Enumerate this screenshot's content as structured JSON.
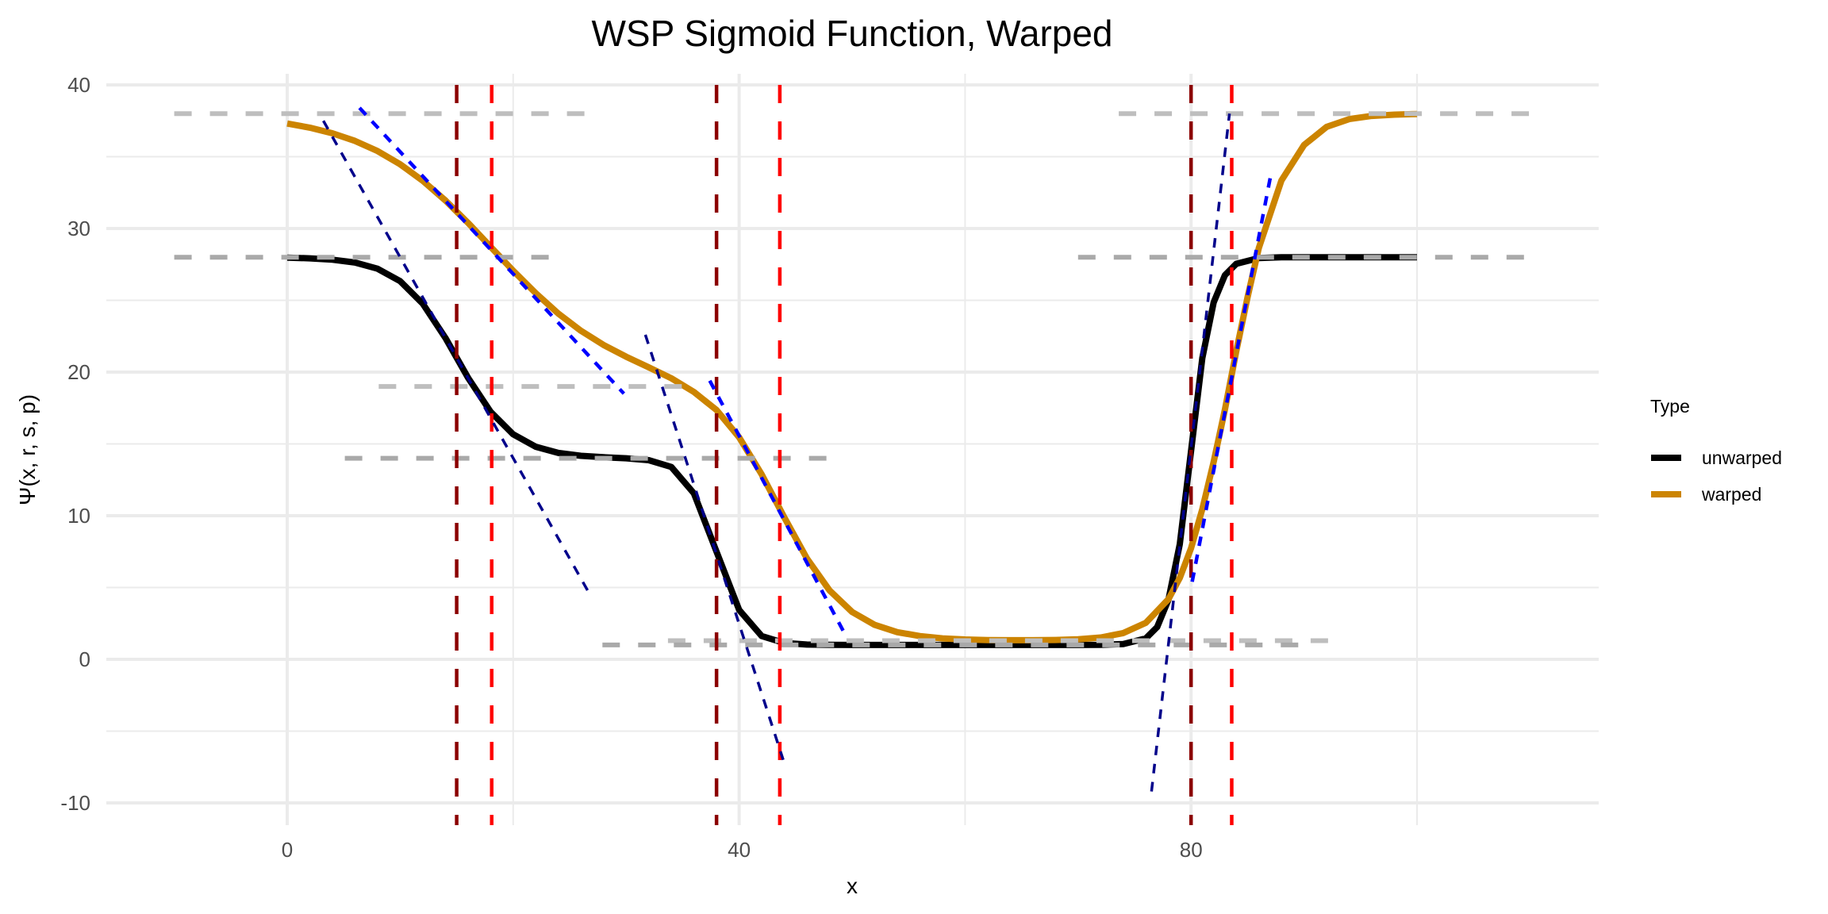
{
  "chart_data": {
    "type": "line",
    "title": "WSP Sigmoid Function, Warped",
    "xlabel": "x",
    "ylabel": "Ψ(x, r, s, p)",
    "xlim": [
      -16,
      116
    ],
    "ylim": [
      -11.5,
      40.8
    ],
    "x_ticks": [
      0,
      40,
      80
    ],
    "x_tick_labels": [
      "0",
      "40",
      "80"
    ],
    "x_minor_ticks": [
      20,
      60,
      100
    ],
    "y_ticks": [
      -10,
      0,
      10,
      20,
      30,
      40
    ],
    "y_tick_labels": [
      "-10",
      "0",
      "10",
      "20",
      "30",
      "40"
    ],
    "y_minor_ticks": [
      -5,
      5,
      15,
      25,
      35
    ],
    "grid": true,
    "legend": {
      "title": "Type",
      "position": "right",
      "entries": [
        {
          "label": "unwarped",
          "color": "#000000"
        },
        {
          "label": "warped",
          "color": "#CC8400"
        }
      ]
    },
    "series": [
      {
        "name": "unwarped",
        "color": "#000000",
        "x": [
          0,
          2,
          4,
          6,
          8,
          10,
          12,
          14,
          16,
          18,
          20,
          22,
          24,
          26,
          28,
          30,
          32,
          34,
          36,
          38,
          40,
          42,
          44,
          46,
          48,
          50,
          55,
          60,
          65,
          70,
          72,
          74,
          76,
          77,
          78,
          79,
          80,
          81,
          82,
          83,
          84,
          86,
          88,
          90,
          95,
          100
        ],
        "y": [
          27.97,
          27.92,
          27.83,
          27.63,
          27.2,
          26.33,
          24.76,
          22.38,
          19.62,
          17.24,
          15.67,
          14.8,
          14.37,
          14.17,
          14.07,
          14.0,
          13.87,
          13.39,
          11.56,
          7.5,
          3.44,
          1.62,
          1.14,
          1.03,
          1.01,
          1.0,
          1.0,
          1.0,
          1.0,
          1.0,
          1.01,
          1.06,
          1.46,
          2.25,
          4.15,
          8.02,
          14.5,
          20.98,
          24.85,
          26.75,
          27.54,
          27.94,
          28.0,
          28.0,
          28.0,
          28.0
        ]
      },
      {
        "name": "warped",
        "color": "#CC8400",
        "x": [
          0,
          2,
          4,
          6,
          8,
          10,
          12,
          14,
          16,
          18,
          20,
          22,
          24,
          26,
          28,
          30,
          32,
          34,
          36,
          38,
          40,
          42,
          44,
          46,
          48,
          50,
          52,
          54,
          56,
          58,
          60,
          62,
          64,
          66,
          68,
          70,
          72,
          74,
          76,
          78,
          79,
          80,
          81,
          82,
          83,
          84,
          85,
          86,
          88,
          90,
          92,
          94,
          96,
          98,
          100
        ],
        "y": [
          37.31,
          37.02,
          36.63,
          36.1,
          35.39,
          34.47,
          33.32,
          31.95,
          30.4,
          28.73,
          27.06,
          25.49,
          24.07,
          22.88,
          21.89,
          21.07,
          20.33,
          19.57,
          18.62,
          17.36,
          15.46,
          12.87,
          9.88,
          7.03,
          4.8,
          3.3,
          2.4,
          1.89,
          1.62,
          1.46,
          1.38,
          1.34,
          1.33,
          1.33,
          1.35,
          1.4,
          1.52,
          1.83,
          2.54,
          4.19,
          5.67,
          7.74,
          10.46,
          13.75,
          17.4,
          21.46,
          25.21,
          28.64,
          33.34,
          35.81,
          37.08,
          37.62,
          37.84,
          37.93,
          37.97
        ]
      }
    ],
    "reference_hlines": [
      {
        "y": 38.0,
        "x_from": -10,
        "x_to": 26.8,
        "color": "#BEBEBE",
        "group": "warped"
      },
      {
        "y": 28.0,
        "x_from": -10,
        "x_to": 23.5,
        "color": "#A9A9A9",
        "group": "unwarped"
      },
      {
        "y": 19.0,
        "x_from": 8.1,
        "x_to": 36.5,
        "color": "#BEBEBE",
        "group": "warped"
      },
      {
        "y": 14.0,
        "x_from": 5.1,
        "x_to": 48.0,
        "color": "#A9A9A9",
        "group": "unwarped"
      },
      {
        "y": 1.3,
        "x_from": 33.7,
        "x_to": 92.9,
        "color": "#BEBEBE",
        "group": "warped"
      },
      {
        "y": 1.0,
        "x_from": 27.9,
        "x_to": 90.0,
        "color": "#A9A9A9",
        "group": "unwarped"
      },
      {
        "y": 38.0,
        "x_from": 73.6,
        "x_to": 110.0,
        "color": "#BEBEBE",
        "group": "warped"
      },
      {
        "y": 28.0,
        "x_from": 70.0,
        "x_to": 110.0,
        "color": "#A9A9A9",
        "group": "unwarped"
      }
    ],
    "reference_vlines": [
      {
        "x": 15.0,
        "color": "#8B0000",
        "group": "unwarped"
      },
      {
        "x": 18.1,
        "color": "#FF0000",
        "group": "warped"
      },
      {
        "x": 38.0,
        "color": "#8B0000",
        "group": "unwarped"
      },
      {
        "x": 43.6,
        "color": "#FF0000",
        "group": "warped"
      },
      {
        "x": 80.0,
        "color": "#8B0000",
        "group": "unwarped"
      },
      {
        "x": 83.6,
        "color": "#FF0000",
        "group": "warped"
      }
    ],
    "tangent_lines": [
      {
        "x1": 3.2,
        "y1": 37.5,
        "x2": 26.8,
        "y2": 4.5,
        "color": "#00008B",
        "group": "unwarped"
      },
      {
        "x1": 6.4,
        "y1": 38.4,
        "x2": 29.8,
        "y2": 18.5,
        "color": "#0000FF",
        "group": "warped"
      },
      {
        "x1": 31.7,
        "y1": 22.6,
        "x2": 43.9,
        "y2": -7.0,
        "color": "#00008B",
        "group": "unwarped"
      },
      {
        "x1": 37.4,
        "y1": 19.4,
        "x2": 49.2,
        "y2": 2.0,
        "color": "#0000FF",
        "group": "warped"
      },
      {
        "x1": 76.5,
        "y1": -9.2,
        "x2": 83.4,
        "y2": 38.0,
        "color": "#00008B",
        "group": "unwarped"
      },
      {
        "x1": 80.1,
        "y1": 5.4,
        "x2": 87.1,
        "y2": 33.9,
        "color": "#0000FF",
        "group": "warped"
      }
    ],
    "colors": {
      "gridline": "#EBEBEB",
      "tick_label": "#4D4D4D"
    }
  }
}
